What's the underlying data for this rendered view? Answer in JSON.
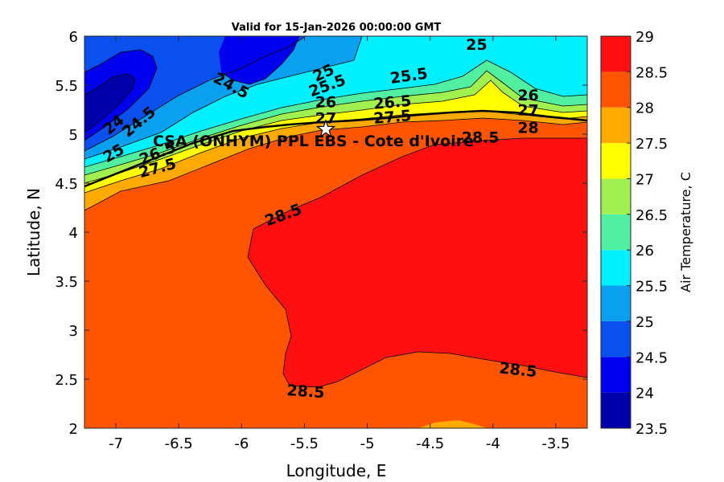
{
  "title": "Valid for 15-Jan-2026 00:00:00 GMT",
  "x_axis": {
    "label": "Longitude, E",
    "range": [
      -7.25,
      -3.25
    ],
    "ticks": [
      -7,
      -6.5,
      -6,
      -5.5,
      -5,
      -4.5,
      -4,
      -3.5
    ],
    "tick_labels": [
      "-7",
      "-6.5",
      "-6",
      "-5.5",
      "-5",
      "-4.5",
      "-4",
      "-3.5"
    ]
  },
  "y_axis": {
    "label": "Latitude, N",
    "range": [
      2,
      6
    ],
    "ticks": [
      2,
      2.5,
      3,
      3.5,
      4,
      4.5,
      5,
      5.5,
      6
    ],
    "tick_labels": [
      "2",
      "2.5",
      "3",
      "3.5",
      "4",
      "4.5",
      "5",
      "5.5",
      "6"
    ]
  },
  "colorbar": {
    "label": "Air Temperature, C",
    "levels": [
      23.5,
      24,
      24.5,
      25,
      25.5,
      26,
      26.5,
      27,
      27.5,
      28,
      28.5,
      29
    ],
    "tick_labels": [
      "23.5",
      "24",
      "24.5",
      "25",
      "25.5",
      "26",
      "26.5",
      "27",
      "27.5",
      "28",
      "28.5",
      "29"
    ],
    "colors": [
      "#0000aa",
      "#0000f0",
      "#0a50ee",
      "#0aa0f0",
      "#00f0ff",
      "#50f0a0",
      "#a0f050",
      "#ffff00",
      "#ffaa00",
      "#ff5500",
      "#ff0f0f"
    ]
  },
  "site": {
    "label": "CSA (ONHYM) PPL EBS  - Cote d'Ivoire",
    "lon": -5.33,
    "lat": 5.05
  },
  "contour_labels": [
    {
      "text": "25",
      "lon": -4.13,
      "lat": 5.92,
      "angle": 0
    },
    {
      "text": "24.5",
      "lon": -6.08,
      "lat": 5.5,
      "angle": 28
    },
    {
      "text": "25",
      "lon": -5.35,
      "lat": 5.63,
      "angle": -25
    },
    {
      "text": "25.5",
      "lon": -5.32,
      "lat": 5.5,
      "angle": -20
    },
    {
      "text": "25.5",
      "lon": -4.67,
      "lat": 5.6,
      "angle": -8
    },
    {
      "text": "26",
      "lon": -5.33,
      "lat": 5.33,
      "angle": 0
    },
    {
      "text": "27",
      "lon": -5.33,
      "lat": 5.17,
      "angle": 0
    },
    {
      "text": "26.5",
      "lon": -4.8,
      "lat": 5.33,
      "angle": -5
    },
    {
      "text": "27.5",
      "lon": -4.8,
      "lat": 5.18,
      "angle": -5
    },
    {
      "text": "26",
      "lon": -3.72,
      "lat": 5.4,
      "angle": 0
    },
    {
      "text": "27",
      "lon": -3.72,
      "lat": 5.25,
      "angle": 0
    },
    {
      "text": "28",
      "lon": -3.72,
      "lat": 5.07,
      "angle": 0
    },
    {
      "text": "28.5",
      "lon": -4.1,
      "lat": 4.97,
      "angle": 0
    },
    {
      "text": "24",
      "lon": -7.02,
      "lat": 5.1,
      "angle": -40
    },
    {
      "text": "24.5",
      "lon": -6.82,
      "lat": 5.13,
      "angle": -40
    },
    {
      "text": "25",
      "lon": -7.02,
      "lat": 4.81,
      "angle": -30
    },
    {
      "text": "26.5",
      "lon": -6.67,
      "lat": 4.81,
      "angle": -22
    },
    {
      "text": "27.5",
      "lon": -6.67,
      "lat": 4.66,
      "angle": -15
    },
    {
      "text": "28.5",
      "lon": -5.67,
      "lat": 4.18,
      "angle": -20
    },
    {
      "text": "28.5",
      "lon": -3.8,
      "lat": 2.6,
      "angle": 6
    },
    {
      "text": "28.5",
      "lon": -5.49,
      "lat": 2.38,
      "angle": 4
    }
  ]
}
